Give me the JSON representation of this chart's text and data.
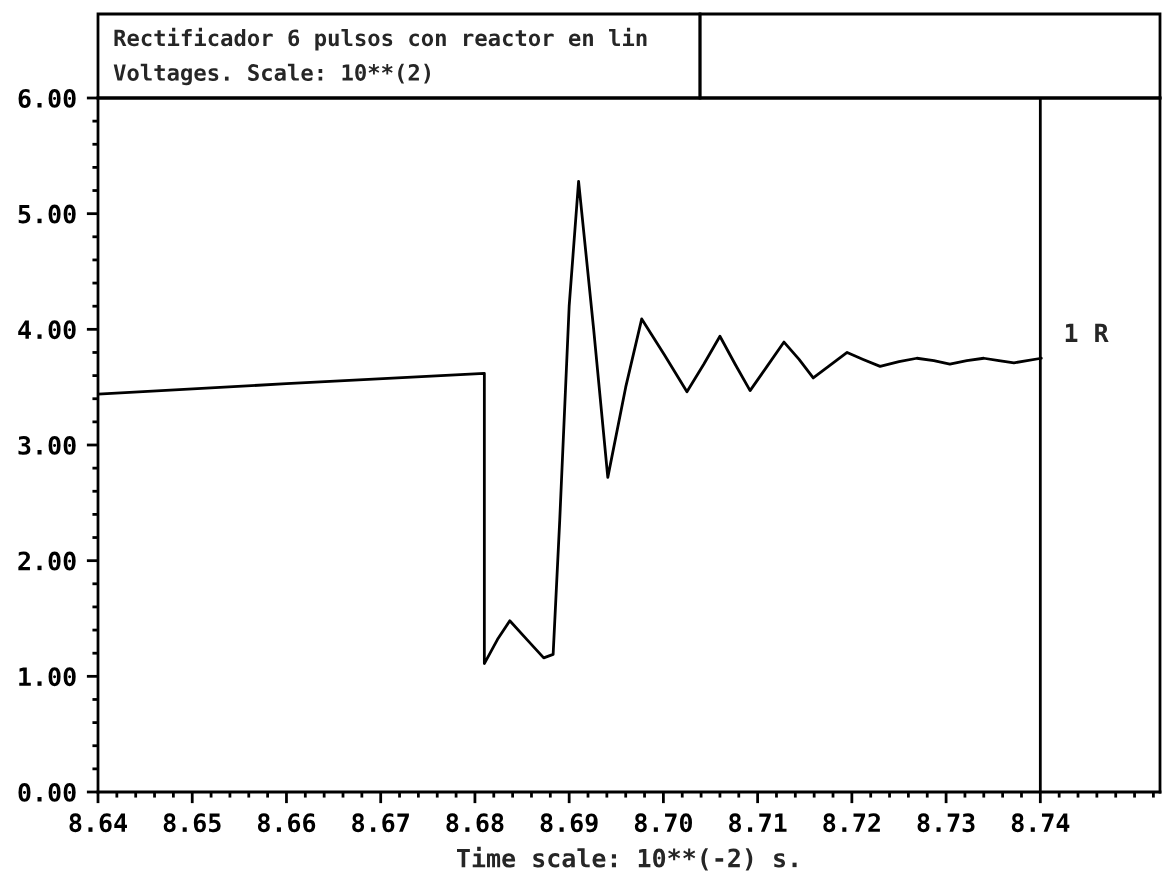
{
  "chart_data": {
    "type": "line",
    "title": "Rectificador 6 pulsos con reactor en lin",
    "subtitle": "Voltages. Scale: 10**(2)",
    "xlabel": "Time scale: 10**(-2) s.",
    "series": [
      {
        "name": "1 R",
        "color": "#000000",
        "x": [
          8.64,
          8.66,
          8.681,
          8.681,
          8.6824,
          8.6837,
          8.6855,
          8.6873,
          8.6883,
          8.689,
          8.69,
          8.691,
          8.6926,
          8.6941,
          8.696,
          8.6977,
          8.7001,
          8.7025,
          8.7043,
          8.706,
          8.7076,
          8.7092,
          8.711,
          8.7128,
          8.7144,
          8.7159,
          8.7177,
          8.7195,
          8.7212,
          8.723,
          8.725,
          8.7269,
          8.7287,
          8.7304,
          8.7322,
          8.734,
          8.7356,
          8.7372,
          8.7401
        ],
        "values": [
          3.44,
          3.53,
          3.62,
          1.11,
          1.32,
          1.48,
          1.32,
          1.16,
          1.19,
          2.35,
          4.2,
          5.28,
          4.0,
          2.72,
          3.5,
          4.09,
          3.78,
          3.46,
          3.7,
          3.94,
          3.7,
          3.47,
          3.68,
          3.89,
          3.74,
          3.58,
          3.69,
          3.8,
          3.74,
          3.68,
          3.72,
          3.75,
          3.73,
          3.7,
          3.73,
          3.75,
          3.73,
          3.71,
          3.75
        ]
      }
    ],
    "xlim": [
      8.64,
      8.7527
    ],
    "ylim": [
      0,
      6
    ],
    "xticks": [
      {
        "value": 8.64,
        "label": "8.64"
      },
      {
        "value": 8.65,
        "label": "8.65"
      },
      {
        "value": 8.66,
        "label": "8.66"
      },
      {
        "value": 8.67,
        "label": "8.67"
      },
      {
        "value": 8.68,
        "label": "8.68"
      },
      {
        "value": 8.69,
        "label": "8.69"
      },
      {
        "value": 8.7,
        "label": "8.70"
      },
      {
        "value": 8.71,
        "label": "8.71"
      },
      {
        "value": 8.72,
        "label": "8.72"
      },
      {
        "value": 8.73,
        "label": "8.73"
      },
      {
        "value": 8.74,
        "label": "8.74"
      }
    ],
    "yticks": [
      {
        "value": 0,
        "label": "0.00"
      },
      {
        "value": 1,
        "label": "1.00"
      },
      {
        "value": 2,
        "label": "2.00"
      },
      {
        "value": 3,
        "label": "3.00"
      },
      {
        "value": 4,
        "label": "4.00"
      },
      {
        "value": 5,
        "label": "5.00"
      },
      {
        "value": 6,
        "label": "6.00"
      }
    ],
    "ref_lines": [
      {
        "axis": "x",
        "value": 8.74,
        "color": "#000000"
      }
    ],
    "grid": false,
    "legend": false,
    "marker": "none",
    "line_style": "solid"
  }
}
